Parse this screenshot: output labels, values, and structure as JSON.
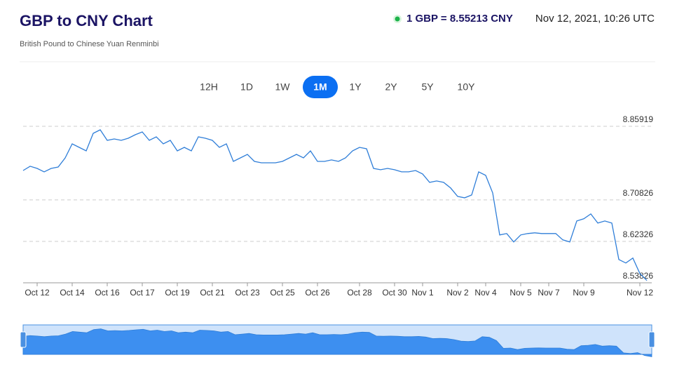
{
  "header": {
    "title": "GBP to CNY Chart",
    "subtitle": "British Pound to Chinese Yuan Renminbi",
    "rate": "1 GBP = 8.55213 CNY",
    "timestamp": "Nov 12, 2021, 10:26 UTC"
  },
  "ranges": {
    "options": [
      "12H",
      "1D",
      "1W",
      "1M",
      "1Y",
      "2Y",
      "5Y",
      "10Y"
    ],
    "selected_index": 3
  },
  "chart_data": {
    "type": "line",
    "color": "#2f7ed8",
    "categories": [
      null,
      null,
      "Oct 12",
      null,
      null,
      null,
      null,
      "Oct 14",
      null,
      null,
      null,
      null,
      "Oct 16",
      null,
      null,
      null,
      null,
      "Oct 17",
      null,
      null,
      null,
      null,
      "Oct 19",
      null,
      null,
      null,
      null,
      "Oct 21",
      null,
      null,
      null,
      null,
      "Oct 23",
      null,
      null,
      null,
      null,
      "Oct 25",
      null,
      null,
      null,
      null,
      "Oct 26",
      null,
      null,
      null,
      null,
      null,
      "Oct 28",
      null,
      null,
      null,
      null,
      "Oct 30",
      null,
      null,
      null,
      "Nov 1",
      null,
      null,
      null,
      null,
      "Nov 2",
      null,
      null,
      null,
      "Nov 4",
      null,
      null,
      null,
      null,
      "Nov 5",
      null,
      null,
      null,
      "Nov 7",
      null,
      null,
      null,
      null,
      "Nov 9",
      null,
      null,
      null,
      null,
      null,
      null,
      null,
      "Nov 12",
      null
    ],
    "values": [
      8.7686,
      8.7773,
      8.7729,
      8.7658,
      8.7729,
      8.7758,
      8.7945,
      8.8233,
      8.8161,
      8.8089,
      8.8448,
      8.852,
      8.8304,
      8.8333,
      8.8304,
      8.8348,
      8.8419,
      8.8477,
      8.8304,
      8.8376,
      8.8233,
      8.8304,
      8.8089,
      8.8161,
      8.8089,
      8.8376,
      8.8348,
      8.8304,
      8.8161,
      8.8233,
      8.7873,
      8.7945,
      8.8017,
      8.7873,
      8.7844,
      8.7844,
      8.7844,
      8.7873,
      8.7945,
      8.8017,
      8.7945,
      8.8089,
      8.7873,
      8.7873,
      8.7902,
      8.7873,
      8.7945,
      8.8089,
      8.8161,
      8.8132,
      8.7729,
      8.7701,
      8.7729,
      8.7701,
      8.7658,
      8.7658,
      8.7686,
      8.7615,
      8.7442,
      8.7471,
      8.7442,
      8.7327,
      8.7155,
      8.7126,
      8.7183,
      8.7658,
      8.7586,
      8.7226,
      8.6364,
      8.6393,
      8.622,
      8.6364,
      8.6393,
      8.6407,
      8.6393,
      8.6393,
      8.6393,
      8.6263,
      8.622,
      8.6651,
      8.6695,
      8.6795,
      8.6608,
      8.6651,
      8.6608,
      8.5861,
      8.5789,
      8.589,
      8.5573,
      8.543
    ],
    "ylim": [
      8.53826,
      8.8808
    ],
    "yticks": [
      8.85919,
      8.70826,
      8.62326,
      8.53826
    ],
    "grid": true,
    "navigator": true
  }
}
